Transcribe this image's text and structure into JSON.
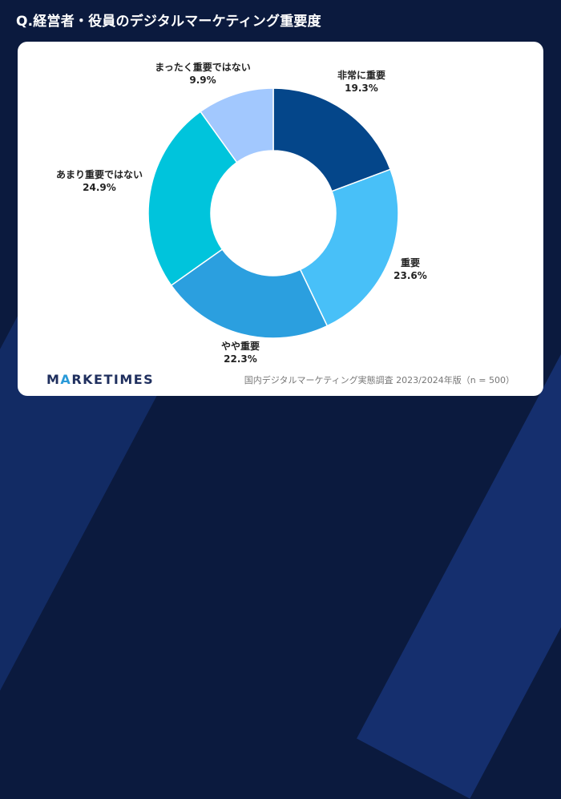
{
  "header": {
    "title": "Q.経営者・役員のデジタルマーケティング重要度"
  },
  "chart_data": {
    "type": "pie",
    "donut": true,
    "title": "Q.経営者・役員のデジタルマーケティング重要度",
    "slices": [
      {
        "label": "非常に重要",
        "value": 19.3,
        "display": "19.3%",
        "color": "#04468a"
      },
      {
        "label": "重要",
        "value": 23.6,
        "display": "23.6%",
        "color": "#48c0f8"
      },
      {
        "label": "やや重要",
        "value": 22.3,
        "display": "22.3%",
        "color": "#2b9fdf"
      },
      {
        "label": "あまり重要ではない",
        "value": 24.9,
        "display": "24.9%",
        "color": "#00c4dc"
      },
      {
        "label": "まったく重要ではない",
        "value": 9.9,
        "display": "9.9%",
        "color": "#a2c8fe"
      }
    ]
  },
  "footer": {
    "logo_prefix": "M",
    "logo_accent": "A",
    "logo_suffix": "RKETIMES",
    "source": "国内デジタルマーケティング実態調査 2023/2024年版（n = 500）"
  }
}
